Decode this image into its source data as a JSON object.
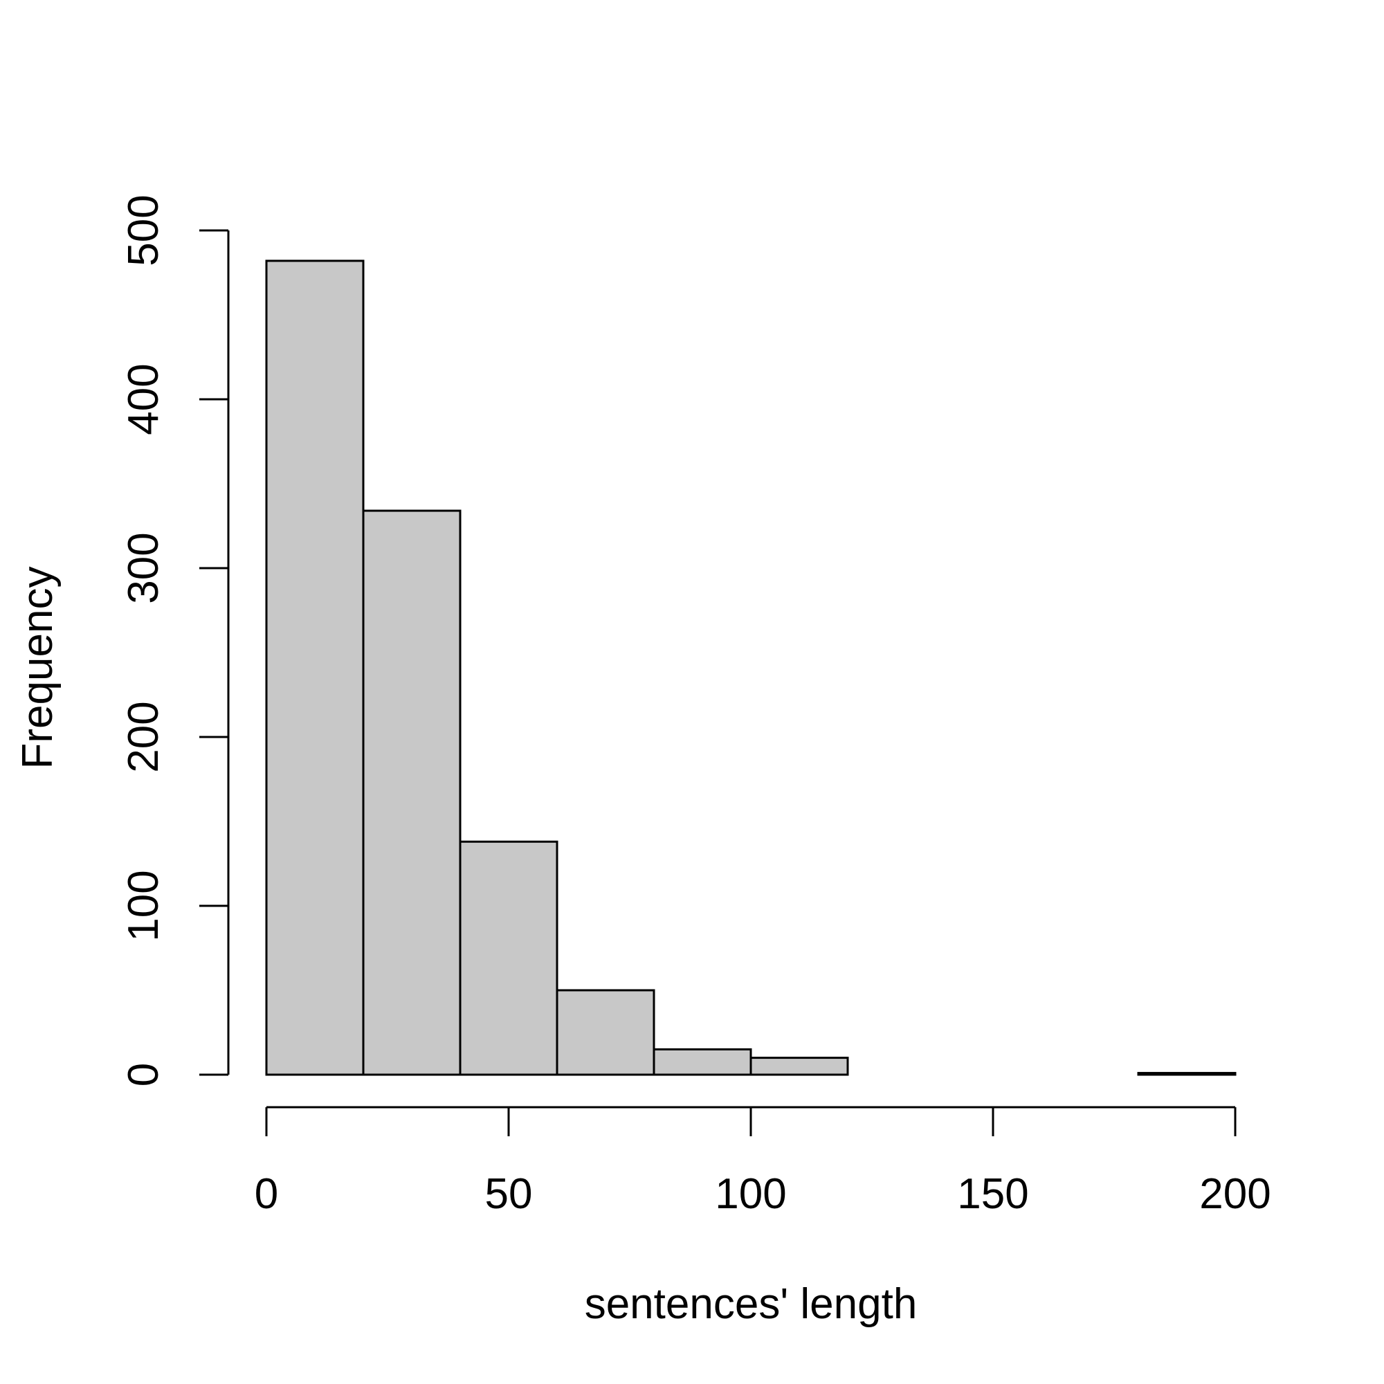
{
  "chart_data": {
    "type": "bar",
    "subtype": "histogram",
    "title": "",
    "xlabel": "sentences' length",
    "ylabel": "Frequency",
    "bins": [
      {
        "from": 0,
        "to": 20,
        "value": 482
      },
      {
        "from": 20,
        "to": 40,
        "value": 334
      },
      {
        "from": 40,
        "to": 60,
        "value": 138
      },
      {
        "from": 60,
        "to": 80,
        "value": 50
      },
      {
        "from": 80,
        "to": 100,
        "value": 15
      },
      {
        "from": 100,
        "to": 120,
        "value": 10
      },
      {
        "from": 120,
        "to": 140,
        "value": 0
      },
      {
        "from": 140,
        "to": 160,
        "value": 0
      },
      {
        "from": 160,
        "to": 180,
        "value": 0
      },
      {
        "from": 180,
        "to": 200,
        "value": 1
      }
    ],
    "xlim": [
      0,
      200
    ],
    "ylim": [
      0,
      500
    ],
    "xticks": [
      "0",
      "50",
      "100",
      "150",
      "200"
    ],
    "yticks": [
      "0",
      "100",
      "200",
      "300",
      "400",
      "500"
    ],
    "grid": false,
    "legend": "none",
    "colors": {
      "bar_fill": "#c8c8c8",
      "bar_stroke": "#000000",
      "axis": "#000000"
    }
  }
}
